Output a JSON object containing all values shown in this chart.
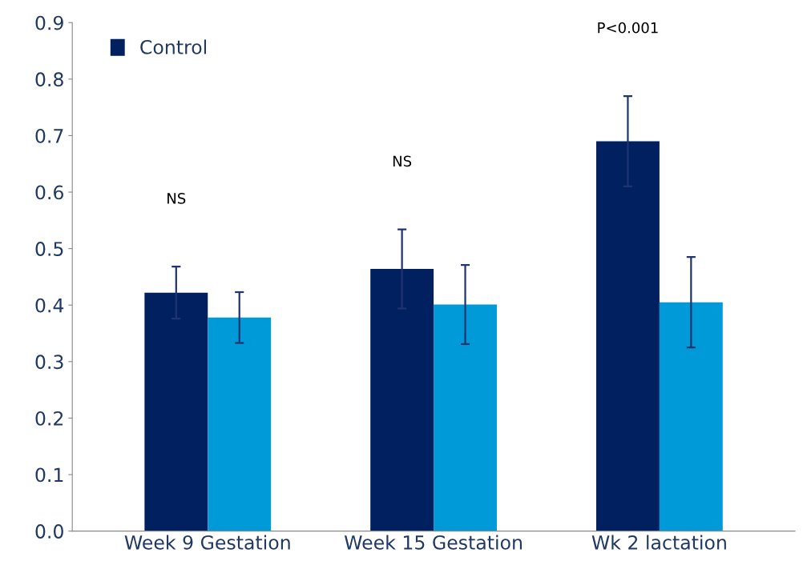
{
  "chart_data": {
    "type": "bar",
    "categories": [
      "Week 9 Gestation",
      "Week 15 Gestation",
      "Wk 2 lactation"
    ],
    "series": [
      {
        "name": "Control",
        "color": "#002060",
        "values": [
          0.422,
          0.464,
          0.69
        ],
        "errors": [
          0.046,
          0.07,
          0.08
        ]
      },
      {
        "color": "#009ad9",
        "values": [
          0.378,
          0.401,
          0.405
        ],
        "errors": [
          0.045,
          0.07,
          0.08
        ]
      }
    ],
    "ylim": [
      0,
      0.9
    ],
    "yticks": [
      {
        "value": 0,
        "label": "0.0"
      },
      0.1,
      0.2,
      0.3,
      0.4,
      0.5,
      0.6,
      0.7,
      0.8,
      0.9
    ],
    "annotations": [
      "NS",
      "NS",
      "P<0.001"
    ],
    "grid": false,
    "legend": "top left"
  }
}
